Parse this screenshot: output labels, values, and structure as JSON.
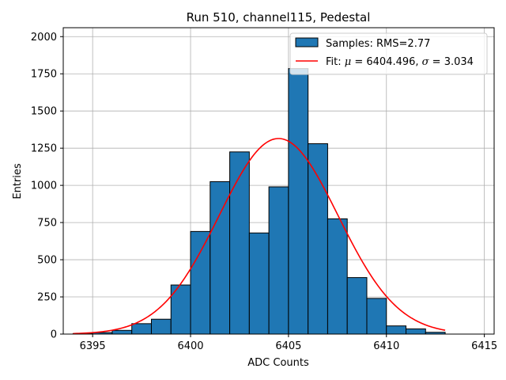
{
  "chart_data": {
    "type": "bar",
    "title": "Run 510, channel115, Pedestal",
    "xlabel": "ADC Counts",
    "ylabel": "Entries",
    "xlim": [
      6393.5,
      6415.5
    ],
    "ylim": [
      0,
      2060
    ],
    "xticks": [
      6395,
      6400,
      6405,
      6410,
      6415
    ],
    "yticks": [
      0,
      250,
      500,
      750,
      1000,
      1250,
      1500,
      1750,
      2000
    ],
    "grid": true,
    "legend_position": "top-right",
    "histogram": {
      "name": "Samples: RMS=2.77",
      "color": "#1f77b4",
      "edge_color": "#000000",
      "bin_edges": [
        6394,
        6395,
        6396,
        6397,
        6398,
        6399,
        6400,
        6401,
        6402,
        6403,
        6404,
        6405,
        6406,
        6407,
        6408,
        6409,
        6410,
        6411,
        6412,
        6413
      ],
      "values": [
        3,
        10,
        25,
        70,
        100,
        330,
        690,
        1025,
        1225,
        680,
        990,
        1785,
        1280,
        775,
        380,
        240,
        55,
        35,
        12
      ]
    },
    "fit": {
      "name": "Fit: μ = 6404.496, σ = 3.034",
      "color": "#ff0000",
      "type": "gaussian",
      "mu": 6404.496,
      "sigma": 3.034,
      "amplitude": 1315,
      "x_range": [
        6394,
        6413
      ]
    }
  }
}
